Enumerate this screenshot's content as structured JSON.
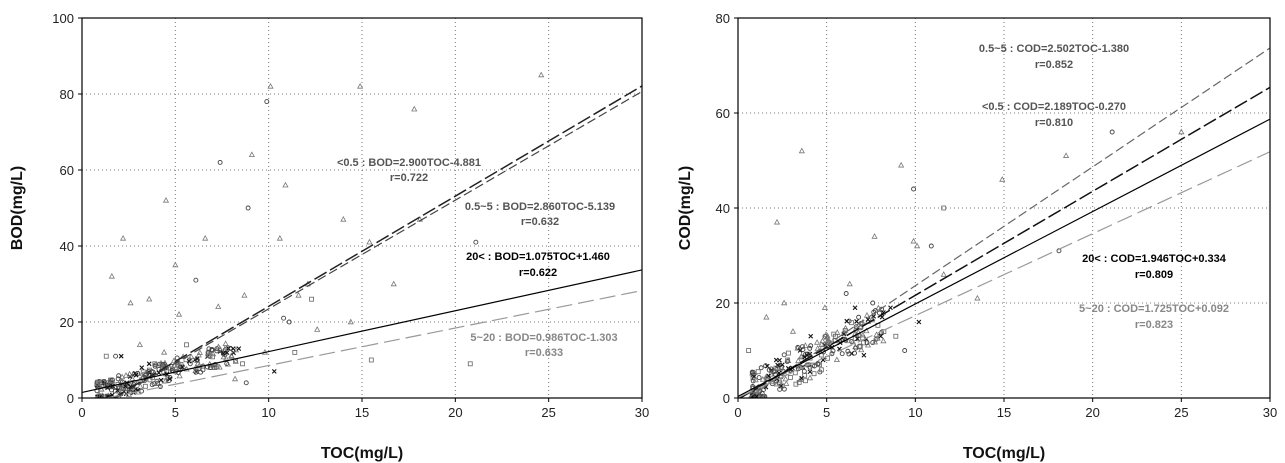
{
  "chart_data": [
    {
      "type": "scatter",
      "xlabel": "TOC(mg/L)",
      "ylabel": "BOD(mg/L)",
      "xlim": [
        0,
        30
      ],
      "ylim": [
        0,
        100
      ],
      "xticks": [
        "0",
        "5",
        "10",
        "15",
        "20",
        "25",
        "30"
      ],
      "yticks": [
        "0",
        "20",
        "40",
        "60",
        "80",
        "100"
      ],
      "grid": true,
      "lines": [
        {
          "label": "<0.5 : BOD=2.900TOC-4.881",
          "r": "r=0.722",
          "slope": 2.9,
          "intercept": -4.881,
          "style": "long-dash",
          "color": "#222222",
          "text_color": "#555555"
        },
        {
          "label": "0.5~5 : BOD=2.860TOC-5.139",
          "r": "r=0.632",
          "slope": 2.86,
          "intercept": -5.139,
          "style": "dash",
          "color": "#444444",
          "text_color": "#555555"
        },
        {
          "label": "20< : BOD=1.075TOC+1.460",
          "r": "r=0.622",
          "slope": 1.075,
          "intercept": 1.46,
          "style": "solid",
          "color": "#000000",
          "text_color": "#000000"
        },
        {
          "label": "5~20 : BOD=0.986TOC-1.303",
          "r": "r=0.633",
          "slope": 0.986,
          "intercept": -1.303,
          "style": "long-dash-light",
          "color": "#999999",
          "text_color": "#888888"
        }
      ],
      "points": [
        {
          "x": 1.6,
          "y": 32,
          "m": "tri"
        },
        {
          "x": 2.2,
          "y": 42,
          "m": "tri"
        },
        {
          "x": 2.6,
          "y": 25,
          "m": "tri"
        },
        {
          "x": 3.6,
          "y": 26,
          "m": "tri"
        },
        {
          "x": 4.5,
          "y": 52,
          "m": "tri"
        },
        {
          "x": 5.0,
          "y": 35,
          "m": "tri"
        },
        {
          "x": 5.2,
          "y": 22,
          "m": "tri"
        },
        {
          "x": 6.6,
          "y": 42,
          "m": "tri"
        },
        {
          "x": 7.3,
          "y": 24,
          "m": "tri"
        },
        {
          "x": 8.7,
          "y": 27,
          "m": "tri"
        },
        {
          "x": 9.1,
          "y": 64,
          "m": "tri"
        },
        {
          "x": 10.1,
          "y": 82,
          "m": "tri"
        },
        {
          "x": 10.6,
          "y": 42,
          "m": "tri"
        },
        {
          "x": 10.9,
          "y": 56,
          "m": "tri"
        },
        {
          "x": 11.6,
          "y": 27,
          "m": "tri"
        },
        {
          "x": 12.1,
          "y": 30,
          "m": "tri"
        },
        {
          "x": 14.0,
          "y": 47,
          "m": "tri"
        },
        {
          "x": 14.9,
          "y": 82,
          "m": "tri"
        },
        {
          "x": 15.4,
          "y": 41,
          "m": "tri"
        },
        {
          "x": 16.7,
          "y": 30,
          "m": "tri"
        },
        {
          "x": 17.8,
          "y": 76,
          "m": "tri"
        },
        {
          "x": 18.1,
          "y": 47,
          "m": "tri"
        },
        {
          "x": 24.6,
          "y": 85,
          "m": "tri"
        },
        {
          "x": 12.6,
          "y": 18,
          "m": "tri"
        },
        {
          "x": 14.4,
          "y": 20,
          "m": "tri"
        },
        {
          "x": 9.8,
          "y": 12,
          "m": "tri"
        },
        {
          "x": 8.2,
          "y": 5,
          "m": "tri"
        },
        {
          "x": 6.1,
          "y": 8,
          "m": "tri"
        },
        {
          "x": 4.4,
          "y": 12,
          "m": "tri"
        },
        {
          "x": 3.1,
          "y": 14,
          "m": "tri"
        },
        {
          "x": 7.4,
          "y": 62,
          "m": "circ"
        },
        {
          "x": 8.9,
          "y": 50,
          "m": "circ"
        },
        {
          "x": 9.9,
          "y": 78,
          "m": "circ"
        },
        {
          "x": 21.1,
          "y": 41,
          "m": "circ"
        },
        {
          "x": 6.1,
          "y": 31,
          "m": "circ"
        },
        {
          "x": 10.8,
          "y": 21,
          "m": "circ"
        },
        {
          "x": 11.1,
          "y": 20,
          "m": "circ"
        },
        {
          "x": 8.8,
          "y": 4,
          "m": "circ"
        },
        {
          "x": 3.4,
          "y": 6,
          "m": "circ"
        },
        {
          "x": 5.8,
          "y": 9,
          "m": "circ"
        },
        {
          "x": 4.2,
          "y": 3,
          "m": "circ"
        },
        {
          "x": 1.8,
          "y": 11,
          "m": "circ"
        },
        {
          "x": 20.8,
          "y": 9,
          "m": "sq"
        },
        {
          "x": 15.5,
          "y": 10,
          "m": "sq"
        },
        {
          "x": 12.3,
          "y": 26,
          "m": "sq"
        },
        {
          "x": 11.4,
          "y": 12,
          "m": "sq"
        },
        {
          "x": 7.1,
          "y": 8,
          "m": "sq"
        },
        {
          "x": 1.3,
          "y": 11,
          "m": "sq"
        },
        {
          "x": 5.6,
          "y": 14,
          "m": "sq"
        },
        {
          "x": 3.9,
          "y": 9,
          "m": "sq"
        },
        {
          "x": 8.6,
          "y": 9,
          "m": "sq"
        },
        {
          "x": 8.1,
          "y": 13,
          "m": "x"
        },
        {
          "x": 8.4,
          "y": 13,
          "m": "x"
        },
        {
          "x": 10.3,
          "y": 7,
          "m": "x"
        },
        {
          "x": 3.6,
          "y": 9,
          "m": "x"
        },
        {
          "x": 3.2,
          "y": 8,
          "m": "x"
        },
        {
          "x": 2.9,
          "y": 6,
          "m": "x"
        },
        {
          "x": 2.4,
          "y": 4,
          "m": "x"
        },
        {
          "x": 2.1,
          "y": 11,
          "m": "x"
        },
        {
          "x": 4.7,
          "y": 5,
          "m": "x"
        },
        {
          "x": 2.6,
          "y": 3,
          "m": "x"
        },
        {
          "x": 3.0,
          "y": 2,
          "m": "x"
        },
        {
          "x": 1.9,
          "y": 2,
          "m": "x"
        }
      ]
    },
    {
      "type": "scatter",
      "xlabel": "TOC(mg/L)",
      "ylabel": "COD(mg/L)",
      "xlim": [
        0,
        30
      ],
      "ylim": [
        0,
        80
      ],
      "xticks": [
        "0",
        "5",
        "10",
        "15",
        "20",
        "25",
        "30"
      ],
      "yticks": [
        "0",
        "20",
        "40",
        "60",
        "80"
      ],
      "grid": true,
      "lines": [
        {
          "label": "0.5~5 : COD=2.502TOC-1.380",
          "r": "r=0.852",
          "slope": 2.502,
          "intercept": -1.38,
          "style": "dash",
          "color": "#666666",
          "text_color": "#555555"
        },
        {
          "label": "<0.5 : COD=2.189TOC-0.270",
          "r": "r=0.810",
          "slope": 2.189,
          "intercept": -0.27,
          "style": "long-dash",
          "color": "#111111",
          "text_color": "#555555"
        },
        {
          "label": "20< : COD=1.946TOC+0.334",
          "r": "r=0.809",
          "slope": 1.946,
          "intercept": 0.334,
          "style": "solid",
          "color": "#000000",
          "text_color": "#000000"
        },
        {
          "label": "5~20 : COD=1.725TOC+0.092",
          "r": "r=0.823",
          "slope": 1.725,
          "intercept": 0.092,
          "style": "long-dash-light",
          "color": "#999999",
          "text_color": "#888888"
        }
      ],
      "points": [
        {
          "x": 2.2,
          "y": 37,
          "m": "tri"
        },
        {
          "x": 3.6,
          "y": 52,
          "m": "tri"
        },
        {
          "x": 2.6,
          "y": 20,
          "m": "tri"
        },
        {
          "x": 4.9,
          "y": 19,
          "m": "tri"
        },
        {
          "x": 6.3,
          "y": 24,
          "m": "tri"
        },
        {
          "x": 7.7,
          "y": 34,
          "m": "tri"
        },
        {
          "x": 9.2,
          "y": 49,
          "m": "tri"
        },
        {
          "x": 9.9,
          "y": 33,
          "m": "tri"
        },
        {
          "x": 10.1,
          "y": 32,
          "m": "tri"
        },
        {
          "x": 11.6,
          "y": 26,
          "m": "tri"
        },
        {
          "x": 14.9,
          "y": 46,
          "m": "tri"
        },
        {
          "x": 18.5,
          "y": 51,
          "m": "tri"
        },
        {
          "x": 25.0,
          "y": 56,
          "m": "tri"
        },
        {
          "x": 13.5,
          "y": 21,
          "m": "tri"
        },
        {
          "x": 8.2,
          "y": 12,
          "m": "tri"
        },
        {
          "x": 1.6,
          "y": 17,
          "m": "tri"
        },
        {
          "x": 3.1,
          "y": 14,
          "m": "tri"
        },
        {
          "x": 6.9,
          "y": 15,
          "m": "tri"
        },
        {
          "x": 9.9,
          "y": 44,
          "m": "circ"
        },
        {
          "x": 21.1,
          "y": 56,
          "m": "circ"
        },
        {
          "x": 6.1,
          "y": 22,
          "m": "circ"
        },
        {
          "x": 7.6,
          "y": 20,
          "m": "circ"
        },
        {
          "x": 10.9,
          "y": 32,
          "m": "circ"
        },
        {
          "x": 18.1,
          "y": 31,
          "m": "circ"
        },
        {
          "x": 9.4,
          "y": 10,
          "m": "circ"
        },
        {
          "x": 4.1,
          "y": 11,
          "m": "circ"
        },
        {
          "x": 2.1,
          "y": 5,
          "m": "circ"
        },
        {
          "x": 11.6,
          "y": 40,
          "m": "sq"
        },
        {
          "x": 0.6,
          "y": 10,
          "m": "sq"
        },
        {
          "x": 5.5,
          "y": 13,
          "m": "sq"
        },
        {
          "x": 2.8,
          "y": 8,
          "m": "sq"
        },
        {
          "x": 8.9,
          "y": 13,
          "m": "sq"
        },
        {
          "x": 4.6,
          "y": 7,
          "m": "sq"
        },
        {
          "x": 10.2,
          "y": 16,
          "m": "x"
        },
        {
          "x": 8.2,
          "y": 18,
          "m": "x"
        },
        {
          "x": 8.6,
          "y": 19,
          "m": "x"
        },
        {
          "x": 6.6,
          "y": 19,
          "m": "x"
        },
        {
          "x": 4.1,
          "y": 13,
          "m": "x"
        },
        {
          "x": 3.5,
          "y": 10,
          "m": "x"
        },
        {
          "x": 3.9,
          "y": 9,
          "m": "x"
        },
        {
          "x": 2.5,
          "y": 7,
          "m": "x"
        },
        {
          "x": 3.0,
          "y": 6,
          "m": "x"
        },
        {
          "x": 4.8,
          "y": 8,
          "m": "x"
        },
        {
          "x": 2.2,
          "y": 4,
          "m": "x"
        },
        {
          "x": 7.1,
          "y": 9,
          "m": "x"
        }
      ]
    }
  ]
}
